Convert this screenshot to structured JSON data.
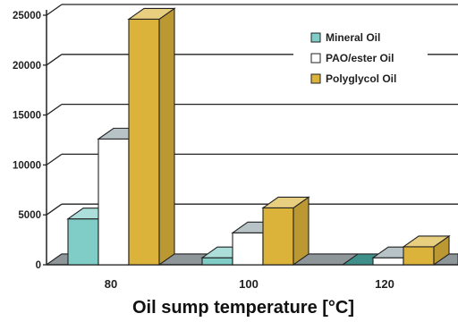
{
  "chart_data": {
    "type": "bar",
    "title": "",
    "xlabel": "Oil sump temperature [°C]",
    "ylabel": "",
    "categories": [
      "80",
      "100",
      "120"
    ],
    "ylim": [
      0,
      25000
    ],
    "yticks": [
      "0",
      "5000",
      "10000",
      "15000",
      "20000",
      "25000"
    ],
    "grid": true,
    "three_d": true,
    "legend_position": "top-right",
    "series": [
      {
        "name": "Mineral Oil",
        "color": "#7fcdc6",
        "values": [
          4600,
          700,
          0
        ]
      },
      {
        "name": "PAO/ester Oil",
        "color": "#ffffff",
        "values": [
          12600,
          3200,
          700
        ]
      },
      {
        "name": "Polyglycol Oil",
        "color": "#dcb33a",
        "values": [
          24600,
          5700,
          1800
        ]
      }
    ]
  }
}
